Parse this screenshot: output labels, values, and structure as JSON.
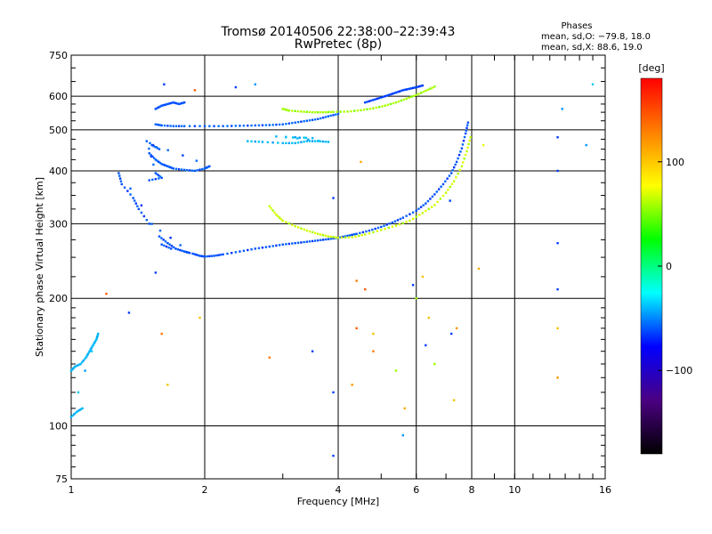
{
  "chart_data": {
    "type": "scatter",
    "title": "Tromsø 20140506 22:38:00–22:39:43",
    "subtitle": "RwPretec (8p)",
    "corner": {
      "heading": "Phases",
      "line1": "mean, sd,O: −79.8, 18.0",
      "line2": "mean, sd,X:  88.6, 19.0"
    },
    "xlabel": "Frequency [MHz]",
    "ylabel": "Stationary phase Virtual Height [km]",
    "x_scale": "log",
    "y_scale": "log",
    "xlim": [
      1,
      16
    ],
    "ylim": [
      75,
      750
    ],
    "x_ticks": [
      1,
      2,
      4,
      6,
      8,
      10,
      16
    ],
    "x_tick_labels": [
      "1",
      "2",
      "4",
      "6",
      "8",
      "10",
      "16"
    ],
    "y_ticks": [
      75,
      100,
      200,
      300,
      400,
      500,
      600,
      750
    ],
    "y_tick_labels": [
      "75",
      "100",
      "200",
      "300",
      "400",
      "500",
      "600",
      "750"
    ],
    "grid": true,
    "colorbar": {
      "label": "[deg]",
      "range": [
        -180,
        180
      ],
      "ticks": [
        -100,
        0,
        100
      ],
      "tick_labels": [
        "−100",
        "0",
        "100"
      ],
      "colors": [
        "#000000",
        "#4b0082",
        "#0000ff",
        "#00ffff",
        "#00ff00",
        "#ffff00",
        "#ff8000",
        "#ff0000"
      ]
    },
    "series": [
      {
        "phase": -85,
        "points": [
          [
            1.88,
            255
          ],
          [
            1.95,
            252
          ],
          [
            2.0,
            251
          ],
          [
            2.1,
            252
          ],
          [
            2.2,
            254
          ],
          [
            2.4,
            258
          ],
          [
            2.6,
            262
          ],
          [
            2.8,
            265
          ],
          [
            3.0,
            268
          ],
          [
            3.2,
            270
          ],
          [
            3.4,
            272
          ],
          [
            3.6,
            274
          ],
          [
            3.8,
            276
          ],
          [
            4.0,
            278
          ],
          [
            4.2,
            281
          ],
          [
            4.4,
            284
          ],
          [
            4.7,
            289
          ],
          [
            5.0,
            295
          ],
          [
            5.3,
            302
          ],
          [
            5.6,
            310
          ],
          [
            6.0,
            322
          ],
          [
            6.3,
            335
          ],
          [
            6.6,
            352
          ],
          [
            6.9,
            372
          ],
          [
            7.2,
            395
          ],
          [
            7.4,
            420
          ],
          [
            7.6,
            452
          ],
          [
            7.75,
            490
          ],
          [
            7.85,
            520
          ]
        ]
      },
      {
        "phase": -85,
        "points": [
          [
            1.58,
            280
          ],
          [
            1.65,
            270
          ],
          [
            1.72,
            262
          ],
          [
            1.8,
            258
          ],
          [
            1.85,
            256
          ],
          [
            1.5,
            300
          ],
          [
            1.42,
            325
          ],
          [
            1.38,
            345
          ],
          [
            1.3,
            372
          ],
          [
            1.28,
            395
          ],
          [
            1.6,
            268
          ],
          [
            1.68,
            262
          ]
        ]
      },
      {
        "phase": 70,
        "points": [
          [
            2.8,
            330
          ],
          [
            2.9,
            315
          ],
          [
            3.0,
            305
          ],
          [
            3.2,
            296
          ],
          [
            3.4,
            289
          ],
          [
            3.6,
            284
          ],
          [
            3.8,
            280
          ],
          [
            4.0,
            278
          ],
          [
            4.3,
            279
          ],
          [
            4.6,
            283
          ],
          [
            5.0,
            290
          ],
          [
            5.4,
            297
          ],
          [
            5.8,
            305
          ],
          [
            6.2,
            318
          ],
          [
            6.6,
            332
          ],
          [
            7.0,
            355
          ],
          [
            7.3,
            378
          ],
          [
            7.6,
            410
          ],
          [
            7.8,
            445
          ],
          [
            7.95,
            480
          ]
        ]
      },
      {
        "phase": -80,
        "points": [
          [
            1.55,
            515
          ],
          [
            1.6,
            512
          ],
          [
            1.7,
            510
          ],
          [
            1.8,
            510
          ],
          [
            2.0,
            510
          ],
          [
            2.2,
            510
          ],
          [
            2.4,
            511
          ],
          [
            2.6,
            512
          ],
          [
            2.8,
            513
          ],
          [
            3.0,
            515
          ],
          [
            3.2,
            520
          ],
          [
            3.4,
            525
          ],
          [
            3.6,
            530
          ],
          [
            3.8,
            538
          ],
          [
            4.0,
            545
          ]
        ]
      },
      {
        "phase": 60,
        "points": [
          [
            3.0,
            560
          ],
          [
            3.1,
            555
          ],
          [
            3.3,
            552
          ],
          [
            3.5,
            550
          ],
          [
            3.7,
            550
          ],
          [
            3.9,
            551
          ],
          [
            4.2,
            552
          ],
          [
            4.5,
            556
          ],
          [
            4.8,
            562
          ],
          [
            5.1,
            570
          ],
          [
            5.4,
            580
          ],
          [
            5.7,
            592
          ],
          [
            6.0,
            604
          ],
          [
            6.3,
            618
          ],
          [
            6.6,
            632
          ]
        ]
      },
      {
        "phase": -50,
        "points": [
          [
            2.5,
            470
          ],
          [
            2.7,
            468
          ],
          [
            3.0,
            465
          ],
          [
            3.2,
            465
          ],
          [
            3.4,
            470
          ],
          [
            3.6,
            470
          ],
          [
            3.8,
            468
          ],
          [
            3.05,
            480
          ],
          [
            3.5,
            478
          ],
          [
            2.9,
            482
          ]
        ]
      },
      {
        "phase": -82,
        "points": [
          [
            1.5,
            440
          ],
          [
            1.55,
            425
          ],
          [
            1.6,
            415
          ],
          [
            1.65,
            410
          ],
          [
            1.7,
            405
          ],
          [
            1.8,
            402
          ],
          [
            1.9,
            400
          ],
          [
            2.0,
            405
          ],
          [
            2.05,
            410
          ],
          [
            1.52,
            460
          ],
          [
            1.58,
            450
          ],
          [
            1.48,
            470
          ],
          [
            1.55,
            395
          ],
          [
            1.6,
            385
          ],
          [
            1.5,
            380
          ]
        ]
      },
      {
        "phase": -90,
        "points": [
          [
            4.6,
            580
          ],
          [
            4.8,
            588
          ],
          [
            5.0,
            596
          ],
          [
            5.2,
            604
          ],
          [
            5.4,
            612
          ],
          [
            5.6,
            620
          ],
          [
            5.8,
            625
          ],
          [
            6.0,
            630
          ],
          [
            6.2,
            636
          ]
        ]
      },
      {
        "phase": -50,
        "points": [
          [
            1.0,
            135
          ],
          [
            1.02,
            138
          ],
          [
            1.05,
            140
          ],
          [
            1.08,
            145
          ],
          [
            1.1,
            150
          ],
          [
            1.12,
            155
          ],
          [
            1.14,
            160
          ],
          [
            1.15,
            165
          ],
          [
            1.0,
            105
          ],
          [
            1.03,
            108
          ],
          [
            1.06,
            110
          ]
        ]
      },
      {
        "phase": -85,
        "points": [
          [
            1.55,
            560
          ],
          [
            1.6,
            570
          ],
          [
            1.65,
            575
          ],
          [
            1.7,
            580
          ],
          [
            1.75,
            575
          ],
          [
            1.8,
            580
          ]
        ]
      }
    ],
    "scatter_points": [
      [
        1.62,
        640,
        -90
      ],
      [
        1.9,
        620,
        150
      ],
      [
        2.35,
        630,
        -90
      ],
      [
        2.6,
        640,
        -60
      ],
      [
        4.5,
        420,
        120
      ],
      [
        4.4,
        220,
        140
      ],
      [
        4.8,
        150,
        140
      ],
      [
        5.4,
        135,
        60
      ],
      [
        5.6,
        95,
        -60
      ],
      [
        5.65,
        110,
        120
      ],
      [
        7.3,
        115,
        110
      ],
      [
        7.2,
        165,
        -90
      ],
      [
        7.4,
        170,
        130
      ],
      [
        6.3,
        155,
        -90
      ],
      [
        6.4,
        180,
        110
      ],
      [
        12.5,
        210,
        -90
      ],
      [
        12.5,
        270,
        -90
      ],
      [
        12.5,
        400,
        -90
      ],
      [
        12.5,
        480,
        -90
      ],
      [
        12.8,
        560,
        -60
      ],
      [
        12.5,
        170,
        110
      ],
      [
        12.5,
        130,
        130
      ],
      [
        14.5,
        460,
        -60
      ],
      [
        15.0,
        640,
        -40
      ],
      [
        1.55,
        230,
        -90
      ],
      [
        1.2,
        205,
        150
      ],
      [
        1.35,
        185,
        -90
      ],
      [
        1.6,
        165,
        140
      ],
      [
        1.65,
        125,
        110
      ],
      [
        1.95,
        180,
        110
      ],
      [
        2.8,
        145,
        140
      ],
      [
        3.5,
        150,
        -90
      ],
      [
        3.9,
        85,
        -90
      ],
      [
        3.9,
        120,
        -90
      ],
      [
        3.9,
        345,
        -90
      ],
      [
        4.4,
        170,
        150
      ],
      [
        4.3,
        125,
        130
      ],
      [
        4.8,
        165,
        110
      ],
      [
        4.6,
        210,
        150
      ],
      [
        5.9,
        215,
        -90
      ],
      [
        6.0,
        200,
        60
      ],
      [
        6.2,
        225,
        110
      ],
      [
        8.3,
        235,
        120
      ],
      [
        8.5,
        460,
        80
      ],
      [
        7.15,
        340,
        -90
      ],
      [
        6.6,
        140,
        60
      ]
    ]
  }
}
